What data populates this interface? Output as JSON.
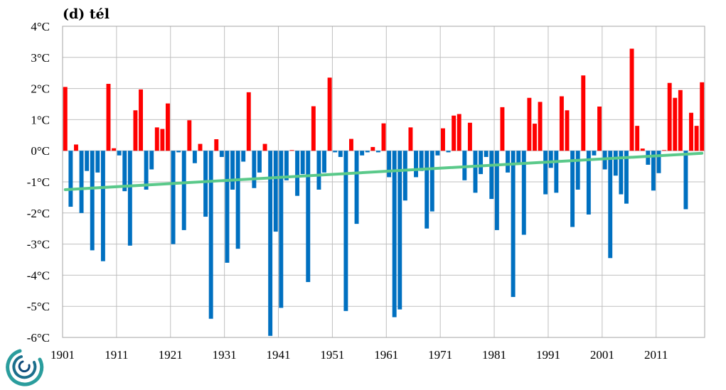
{
  "chart_data": {
    "type": "bar",
    "title": "(d) tél",
    "xlabel": "",
    "ylabel": "",
    "ylim": [
      -6,
      4
    ],
    "y_ticks": [
      4,
      3,
      2,
      1,
      0,
      -1,
      -2,
      -3,
      -4,
      -5,
      -6
    ],
    "y_tick_labels": [
      "4°C",
      "3°C",
      "2°C",
      "1°C",
      "0°C",
      "-1°C",
      "-2°C",
      "-3°C",
      "-4°C",
      "-5°C",
      "-6°C"
    ],
    "x_tick_labels": [
      "1901",
      "1911",
      "1921",
      "1931",
      "1941",
      "1951",
      "1961",
      "1971",
      "1981",
      "1991",
      "2001",
      "2011"
    ],
    "start_year": 1901,
    "grid": true,
    "positive_color": "#ff0000",
    "negative_color": "#0070c0",
    "trend_color": "#5ac98a",
    "trend": {
      "start": -1.25,
      "end": -0.08
    },
    "values": [
      2.05,
      -1.8,
      0.2,
      -2.0,
      -0.65,
      -3.2,
      -0.7,
      -3.55,
      2.15,
      0.08,
      -0.15,
      -1.3,
      -3.05,
      1.3,
      1.97,
      -1.25,
      -0.6,
      0.75,
      0.7,
      1.52,
      -3.0,
      -0.05,
      -2.55,
      0.98,
      -0.4,
      0.22,
      -2.12,
      -5.4,
      0.37,
      -0.2,
      -3.6,
      -1.25,
      -3.15,
      -0.35,
      1.88,
      -1.2,
      -0.7,
      0.22,
      -5.95,
      -2.6,
      -5.05,
      -0.95,
      0.02,
      -1.45,
      -0.75,
      -4.22,
      1.43,
      -1.25,
      -0.7,
      2.35,
      -0.05,
      -0.2,
      -5.15,
      0.38,
      -2.35,
      -0.15,
      -0.05,
      0.12,
      -0.05,
      0.88,
      -0.85,
      -5.35,
      -5.1,
      -1.6,
      0.75,
      -0.85,
      -0.65,
      -2.5,
      -1.95,
      -0.15,
      0.72,
      -0.05,
      1.13,
      1.18,
      -0.95,
      0.9,
      -1.35,
      -0.75,
      -0.2,
      -1.55,
      -2.55,
      1.4,
      -0.7,
      -4.7,
      -0.4,
      -2.7,
      1.7,
      0.87,
      1.57,
      -1.4,
      -0.55,
      -1.35,
      1.75,
      1.3,
      -2.45,
      -1.25,
      2.42,
      -2.05,
      -0.15,
      1.42,
      -0.6,
      -3.45,
      -0.8,
      -1.4,
      -1.7,
      3.28,
      0.8,
      0.07,
      -0.45,
      -1.28,
      -0.72,
      0.02,
      2.18,
      1.7,
      1.95,
      -1.88,
      1.22,
      0.8,
      2.2
    ]
  }
}
